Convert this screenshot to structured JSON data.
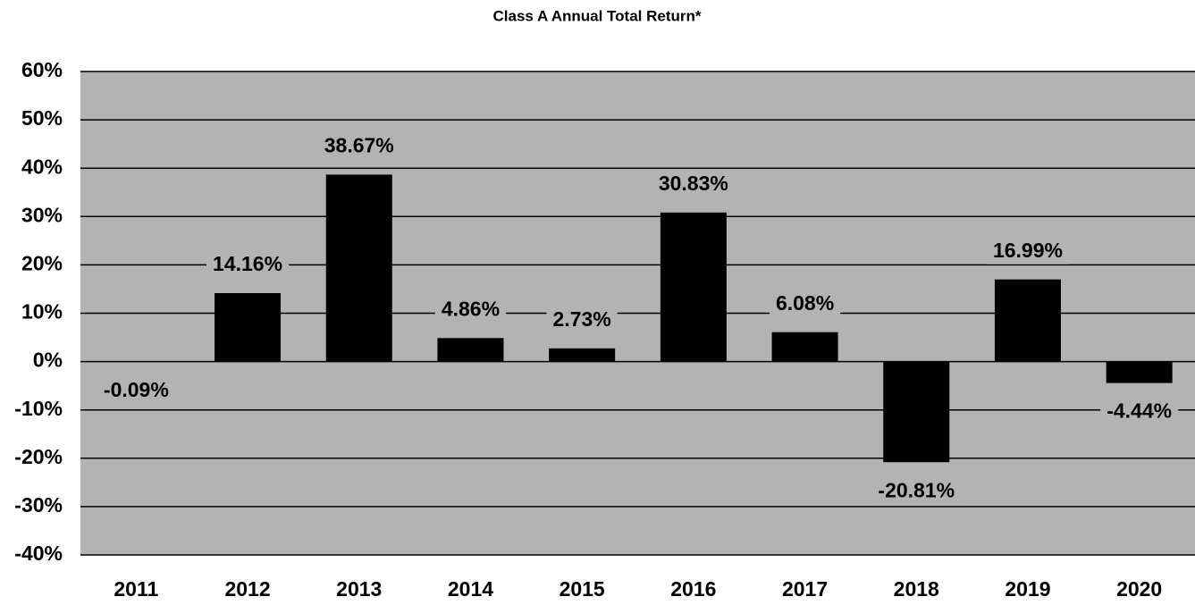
{
  "chart_data": {
    "type": "bar",
    "title": "Class A Annual Total Return*",
    "categories": [
      "2011",
      "2012",
      "2013",
      "2014",
      "2015",
      "2016",
      "2017",
      "2018",
      "2019",
      "2020"
    ],
    "values": [
      -0.09,
      14.16,
      38.67,
      4.86,
      2.73,
      30.83,
      6.08,
      -20.81,
      16.99,
      -4.44
    ],
    "value_labels": [
      "-0.09%",
      "14.16%",
      "38.67%",
      "4.86%",
      "2.73%",
      "30.83%",
      "6.08%",
      "-20.81%",
      "16.99%",
      "-4.44%"
    ],
    "color": "#000000",
    "background": "#b3b3b3",
    "ylim": [
      -40,
      60
    ],
    "yticks": [
      {
        "value": -40,
        "label": "-40%"
      },
      {
        "value": -30,
        "label": "-30%"
      },
      {
        "value": -20,
        "label": "-20%"
      },
      {
        "value": -10,
        "label": "-10%"
      },
      {
        "value": 0,
        "label": "0%"
      },
      {
        "value": 10,
        "label": "10%"
      },
      {
        "value": 20,
        "label": "20%"
      },
      {
        "value": 30,
        "label": "30%"
      },
      {
        "value": 40,
        "label": "40%"
      },
      {
        "value": 50,
        "label": "50%"
      },
      {
        "value": 60,
        "label": "60%"
      }
    ],
    "grid": true
  }
}
